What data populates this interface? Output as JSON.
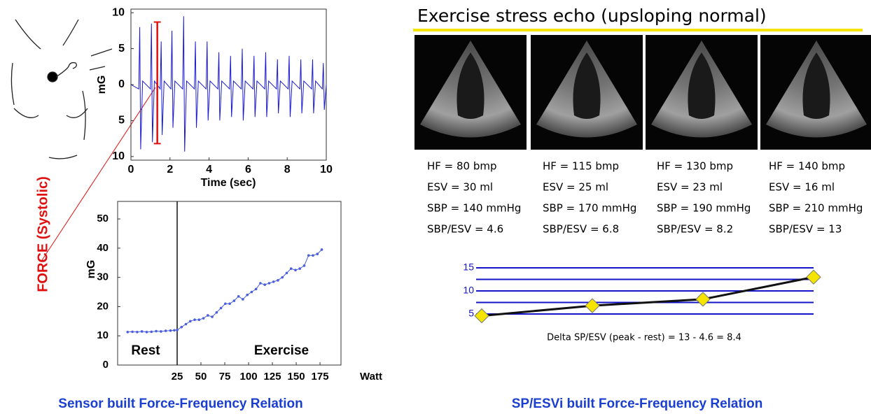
{
  "force_label": "FORCE (Systolic)",
  "left_caption": "Sensor built Force-Frequency Relation",
  "right_caption": "SP/ESVi built Force-Frequency Relation",
  "echo": {
    "title": "Exercise stress echo (upsloping normal)",
    "panels": [
      {
        "lines": [
          "HF = 80 bmp",
          "ESV = 30 ml",
          "SBP = 140 mmHg",
          "SBP/ESV = 4.6"
        ]
      },
      {
        "lines": [
          "HF = 115 bmp",
          "ESV = 25 ml",
          "SBP = 170 mmHg",
          "SBP/ESV = 6.8"
        ]
      },
      {
        "lines": [
          "HF = 130 bmp",
          "ESV = 23 ml",
          "SBP = 190 mmHg",
          "SBP/ESV = 8.2"
        ]
      },
      {
        "lines": [
          "HF = 140 bmp",
          "ESV = 16 ml",
          "SBP = 210 mmHg",
          "SBP/ESV = 13"
        ]
      }
    ]
  },
  "chart_data": [
    {
      "type": "line",
      "xlabel": "Time (sec)",
      "ylabel": "mG",
      "color": "#1a1ad0",
      "x": [
        0,
        0.4,
        0.45,
        0.5,
        0.6,
        1.0,
        1.05,
        1.1,
        1.2,
        1.5,
        1.55,
        1.6,
        1.7,
        2.05,
        2.1,
        2.15,
        2.25,
        2.65,
        2.7,
        2.75,
        2.85,
        3.25,
        3.3,
        3.35,
        3.45,
        3.85,
        3.9,
        3.95,
        4.05,
        4.45,
        4.5,
        4.55,
        4.65,
        5.05,
        5.1,
        5.15,
        5.25,
        5.65,
        5.7,
        5.75,
        5.85,
        6.25,
        6.3,
        6.35,
        6.45,
        6.85,
        6.9,
        6.95,
        7.05,
        7.45,
        7.5,
        7.55,
        7.65,
        8.05,
        8.1,
        8.15,
        8.25,
        8.65,
        8.7,
        8.75,
        8.85,
        9.25,
        9.3,
        9.35,
        9.45,
        9.8,
        9.85,
        9.9,
        10
      ],
      "values": [
        0,
        -0.6,
        8,
        -9,
        0.5,
        -0.6,
        8.5,
        -8,
        0.5,
        -0.6,
        6,
        -7,
        0.5,
        -0.6,
        7.5,
        -6,
        0.5,
        -0.6,
        9.5,
        -9.3,
        0.5,
        -0.6,
        6,
        -6,
        0.5,
        -0.6,
        6,
        -5,
        0.5,
        -0.6,
        4.5,
        -5,
        0.5,
        -0.6,
        4,
        -4.5,
        0.5,
        -0.6,
        5,
        -5,
        0.5,
        -0.6,
        4,
        -4.5,
        0.5,
        -0.6,
        4.5,
        -4.5,
        0.5,
        -0.6,
        3.5,
        -4,
        0.5,
        -0.6,
        4,
        -4.5,
        0.5,
        -0.6,
        3.5,
        -4,
        0.5,
        -0.6,
        3.5,
        -4,
        0.5,
        -0.6,
        3,
        -3.5,
        0
      ],
      "xlim": [
        0,
        10
      ],
      "xticks": [
        0,
        2,
        4,
        6,
        8,
        10
      ],
      "ylim": [
        -10.5,
        10.5
      ],
      "yticks": [
        {
          "value": -10,
          "label": "10"
        },
        {
          "value": -5,
          "label": "5"
        },
        0,
        5,
        10
      ],
      "bracket": {
        "x": 1.35,
        "low": -8.2,
        "high": 8.7,
        "color": "#e01010"
      }
    },
    {
      "type": "line",
      "ylabel": "mG",
      "xlabel": "Watt",
      "color": "#4a5ee0",
      "marker": "dot",
      "x": [
        -27,
        -22,
        -17,
        -12,
        -7,
        -2,
        3,
        8,
        13,
        18,
        22,
        25,
        29.6,
        34.2,
        38.8,
        43.4,
        48,
        52.6,
        57.2,
        61.8,
        66.4,
        71,
        75.6,
        80.2,
        84.8,
        89.4,
        94,
        98.6,
        103.2,
        107.8,
        112.4,
        117,
        121.6,
        126.2,
        130.8,
        135.4,
        140,
        144.6,
        149.2,
        153.8,
        158.4,
        163,
        167.6,
        172.2,
        176.8
      ],
      "values": [
        11.3,
        11.4,
        11.3,
        11.5,
        11.3,
        11.4,
        11.6,
        11.5,
        11.7,
        11.8,
        11.9,
        12,
        13,
        14,
        15,
        15.5,
        15.5,
        16,
        17,
        16.5,
        18,
        19.5,
        21,
        21,
        22,
        23.5,
        22.5,
        24,
        25,
        26,
        28,
        27.5,
        28,
        28.5,
        29,
        30,
        31.5,
        33,
        32.5,
        33,
        34,
        37.5,
        37.5,
        38,
        39.5
      ],
      "xlim": [
        -37.5,
        197
      ],
      "xticks": [
        25,
        50,
        75,
        100,
        125,
        150,
        175
      ],
      "ylim": [
        0,
        56
      ],
      "yticks": [
        0,
        10,
        20,
        30,
        40,
        50
      ],
      "divider_x": 25,
      "annotations": [
        "Rest",
        "Exercise"
      ]
    },
    {
      "type": "line",
      "color": "#111111",
      "marker": "diamond",
      "marker_color": "#f5e400",
      "grid_color": "#1414c8",
      "categories": [
        null,
        null,
        null,
        null
      ],
      "values": [
        4.6,
        6.8,
        8.2,
        13
      ],
      "ylim": [
        5,
        15
      ],
      "yticks": [
        5,
        10,
        15
      ],
      "minor_yticks": [
        7.5,
        12.5
      ],
      "grid": true,
      "annotation": "Delta SP/ESV (peak - rest) = 13 - 4.6 = 8.4"
    }
  ]
}
